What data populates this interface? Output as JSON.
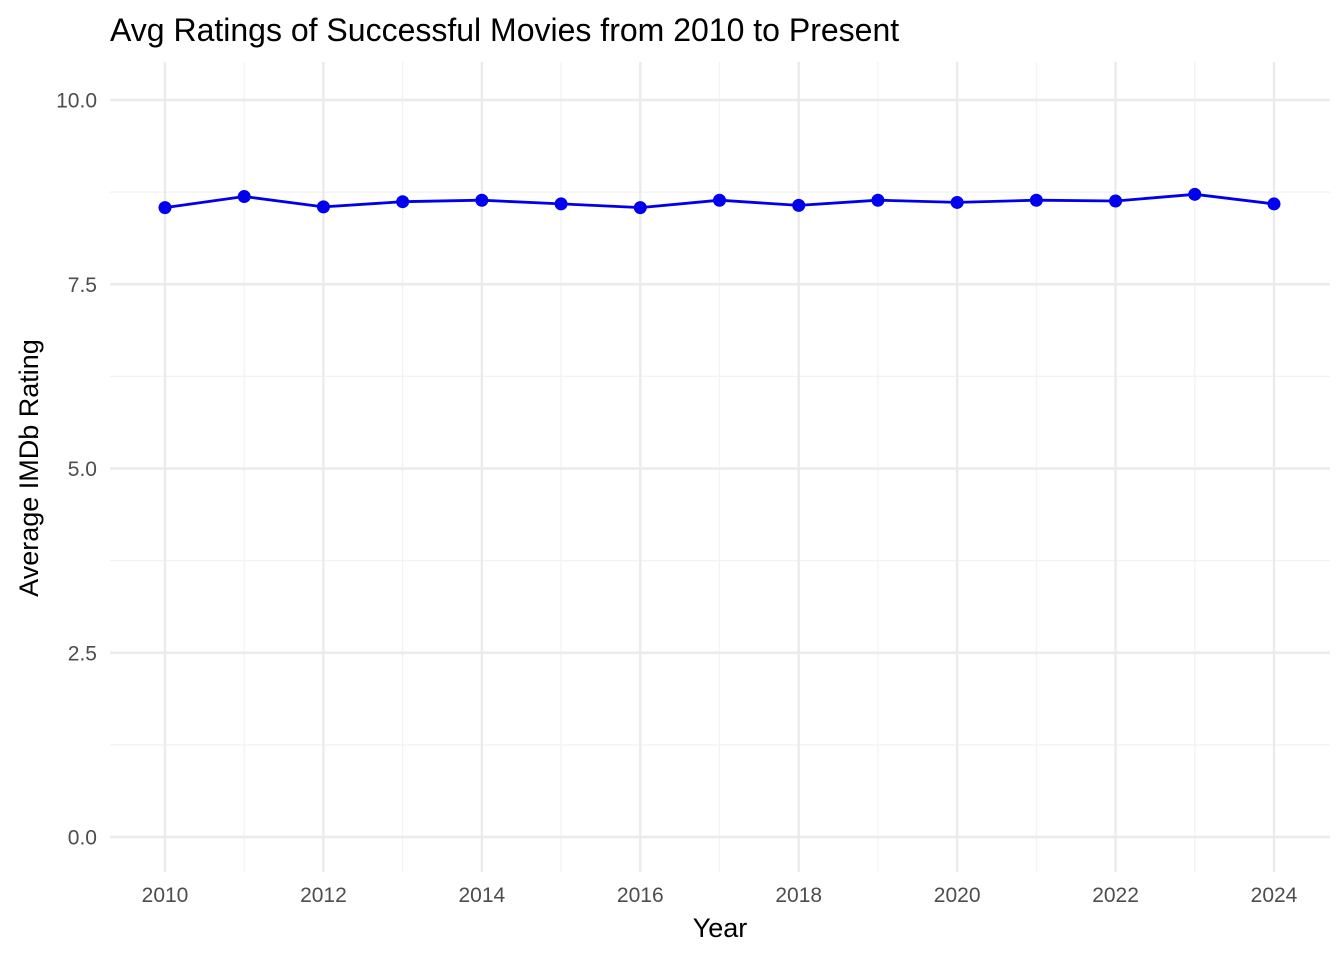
{
  "chart_data": {
    "type": "line",
    "title": "Avg Ratings of Successful Movies from 2010 to Present",
    "xlabel": "Year",
    "ylabel": "Average IMDb Rating",
    "x": [
      2010,
      2011,
      2012,
      2013,
      2014,
      2015,
      2016,
      2017,
      2018,
      2019,
      2020,
      2021,
      2022,
      2023,
      2024
    ],
    "series": [
      {
        "values": [
          8.54,
          8.69,
          8.55,
          8.62,
          8.64,
          8.59,
          8.54,
          8.64,
          8.57,
          8.64,
          8.61,
          8.64,
          8.63,
          8.72,
          8.59
        ],
        "color": "#0000ee",
        "marker": "circle"
      }
    ],
    "xlim": [
      2010,
      2024
    ],
    "ylim": [
      0,
      10
    ],
    "x_ticks": [
      "2010",
      "2012",
      "2014",
      "2016",
      "2018",
      "2020",
      "2022",
      "2024"
    ],
    "y_ticks": [
      "0.0",
      "2.5",
      "5.0",
      "7.5",
      "10.0"
    ],
    "grid": true,
    "legend": "none"
  }
}
